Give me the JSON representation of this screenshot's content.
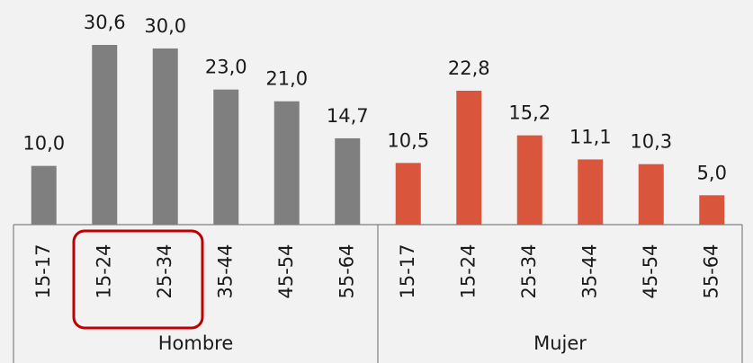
{
  "chart_data": {
    "type": "bar",
    "series": [
      {
        "name": "Hombre",
        "color": "#7f7f7f",
        "categories": [
          "15-17",
          "15-24",
          "25-34",
          "35-44",
          "45-54",
          "55-64"
        ],
        "values": [
          10.0,
          30.6,
          30.0,
          23.0,
          21.0,
          14.7
        ],
        "value_labels": [
          "10,0",
          "30,6",
          "30,0",
          "23,0",
          "21,0",
          "14,7"
        ]
      },
      {
        "name": "Mujer",
        "color": "#d9553b",
        "categories": [
          "15-17",
          "15-24",
          "25-34",
          "35-44",
          "45-54",
          "55-64"
        ],
        "values": [
          10.5,
          22.8,
          15.2,
          11.1,
          10.3,
          5.0
        ],
        "value_labels": [
          "10,5",
          "22,8",
          "15,2",
          "11,1",
          "10,3",
          "5,0"
        ]
      }
    ]
  }
}
